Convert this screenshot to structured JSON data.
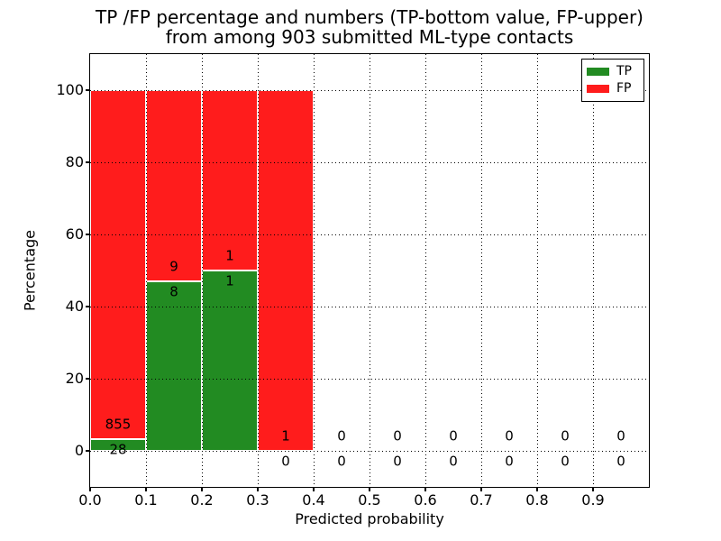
{
  "figure": {
    "title_line1": "TP /FP percentage and numbers (TP-bottom value, FP-upper)",
    "title_line2": "from among 903 submitted ML-type contacts"
  },
  "chart_data": {
    "type": "bar",
    "stacked": true,
    "title": "TP /FP percentage and numbers (TP-bottom value, FP-upper) from among 903 submitted ML-type contacts",
    "xlabel": "Predicted probability",
    "ylabel": "Percentage",
    "total_submitted_contacts": 903,
    "xlim": [
      0.0,
      1.0
    ],
    "ylim": [
      -10,
      110
    ],
    "grid": "dotted",
    "colors": {
      "tp": "#228b22",
      "fp": "#ff1c1c",
      "bar_edge": "#ffffff"
    },
    "x_tick_labels": [
      "0.0",
      "0.1",
      "0.2",
      "0.3",
      "0.4",
      "0.5",
      "0.6",
      "0.7",
      "0.8",
      "0.9"
    ],
    "y_tick_values": [
      0,
      20,
      40,
      60,
      80,
      100
    ],
    "y_tick_labels": [
      "0",
      "20",
      "40",
      "60",
      "80",
      "100"
    ],
    "legend": {
      "position": "upper right",
      "entries": [
        {
          "label": "TP",
          "color": "#228b22"
        },
        {
          "label": "FP",
          "color": "#ff1c1c"
        }
      ]
    },
    "bins": [
      {
        "x_start": 0.0,
        "x_end": 0.1,
        "tp_count": 28,
        "fp_count": 855,
        "tp_pct": 3.17,
        "fp_pct": 96.83
      },
      {
        "x_start": 0.1,
        "x_end": 0.2,
        "tp_count": 8,
        "fp_count": 9,
        "tp_pct": 47.06,
        "fp_pct": 52.94
      },
      {
        "x_start": 0.2,
        "x_end": 0.3,
        "tp_count": 1,
        "fp_count": 1,
        "tp_pct": 50.0,
        "fp_pct": 50.0
      },
      {
        "x_start": 0.3,
        "x_end": 0.4,
        "tp_count": 0,
        "fp_count": 1,
        "tp_pct": 0.0,
        "fp_pct": 100.0
      },
      {
        "x_start": 0.4,
        "x_end": 0.5,
        "tp_count": 0,
        "fp_count": 0,
        "tp_pct": 0.0,
        "fp_pct": 0.0
      },
      {
        "x_start": 0.5,
        "x_end": 0.6,
        "tp_count": 0,
        "fp_count": 0,
        "tp_pct": 0.0,
        "fp_pct": 0.0
      },
      {
        "x_start": 0.6,
        "x_end": 0.7,
        "tp_count": 0,
        "fp_count": 0,
        "tp_pct": 0.0,
        "fp_pct": 0.0
      },
      {
        "x_start": 0.7,
        "x_end": 0.8,
        "tp_count": 0,
        "fp_count": 0,
        "tp_pct": 0.0,
        "fp_pct": 0.0
      },
      {
        "x_start": 0.8,
        "x_end": 0.9,
        "tp_count": 0,
        "fp_count": 0,
        "tp_pct": 0.0,
        "fp_pct": 0.0
      },
      {
        "x_start": 0.9,
        "x_end": 1.0,
        "tp_count": 0,
        "fp_count": 0,
        "tp_pct": 0.0,
        "fp_pct": 0.0
      }
    ]
  }
}
